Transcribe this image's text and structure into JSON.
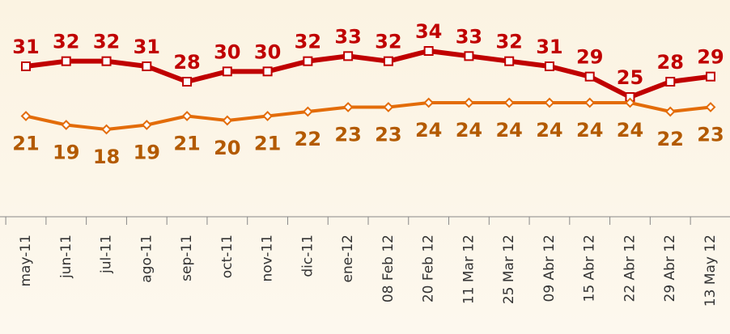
{
  "chart_data": {
    "type": "line",
    "categories": [
      "may-11",
      "jun-11",
      "jul-11",
      "ago-11",
      "sep-11",
      "oct-11",
      "nov-11",
      "dic-11",
      "ene-12",
      "08 Feb 12",
      "20 Feb 12",
      "11 Mar 12",
      "25 Mar 12",
      "09 Abr 12",
      "15 Abr 12",
      "22 Abr 12",
      "29 Abr 12",
      "13 May 12"
    ],
    "series": [
      {
        "color": "#c00000",
        "values": [
          31,
          32,
          32,
          31,
          28,
          30,
          30,
          32,
          33,
          32,
          34,
          33,
          32,
          31,
          29,
          25,
          28,
          29
        ]
      },
      {
        "color": "#e36c09",
        "values": [
          21,
          19,
          18,
          19,
          21,
          20,
          21,
          22,
          23,
          23,
          24,
          24,
          24,
          24,
          24,
          24,
          22,
          23
        ]
      }
    ]
  }
}
